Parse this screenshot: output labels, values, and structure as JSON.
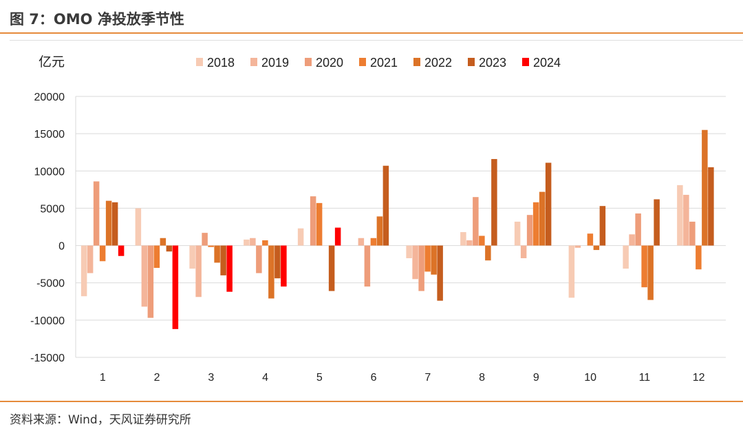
{
  "figure": {
    "title": "图 7：OMO 净投放季节性",
    "source": "资料来源：Wind，天风证券研究所"
  },
  "chart_data": {
    "type": "bar",
    "ylabel": "亿元",
    "categories": [
      "1",
      "2",
      "3",
      "4",
      "5",
      "6",
      "7",
      "8",
      "9",
      "10",
      "11",
      "12"
    ],
    "ylim": [
      -15000,
      20000
    ],
    "yticks": [
      20000,
      15000,
      10000,
      5000,
      0,
      -5000,
      -10000,
      -15000
    ],
    "legend_position": "top",
    "grid": true,
    "series": [
      {
        "name": "2018",
        "color": "#f7cbb4",
        "values": [
          -6800,
          5000,
          -3100,
          800,
          2300,
          null,
          -1700,
          1800,
          3200,
          -7000,
          -3100,
          8100
        ]
      },
      {
        "name": "2019",
        "color": "#f4b59a",
        "values": [
          -3700,
          -8200,
          -6900,
          1000,
          null,
          1000,
          -4500,
          700,
          -1700,
          -300,
          1500,
          6800
        ]
      },
      {
        "name": "2020",
        "color": "#ee9d7a",
        "values": [
          8600,
          -9700,
          1700,
          -3700,
          6600,
          -5500,
          -6100,
          6500,
          4100,
          null,
          4300,
          3200
        ]
      },
      {
        "name": "2021",
        "color": "#ed7d31",
        "values": [
          -2100,
          -3000,
          -200,
          700,
          5700,
          1000,
          -3500,
          1300,
          5800,
          1600,
          -5600,
          -3200
        ]
      },
      {
        "name": "2022",
        "color": "#dc7327",
        "values": [
          6000,
          1000,
          -2300,
          -7100,
          null,
          3900,
          -3900,
          -2000,
          7200,
          -600,
          -7300,
          15500
        ]
      },
      {
        "name": "2023",
        "color": "#c55d1e",
        "values": [
          5800,
          -800,
          -4000,
          -4400,
          -6100,
          10700,
          -7400,
          11600,
          11100,
          5300,
          6200,
          10500
        ]
      },
      {
        "name": "2024",
        "color": "#ff0000",
        "values": [
          -1400,
          -11200,
          -6200,
          -5500,
          2400,
          null,
          null,
          null,
          null,
          null,
          null,
          null
        ]
      }
    ]
  }
}
